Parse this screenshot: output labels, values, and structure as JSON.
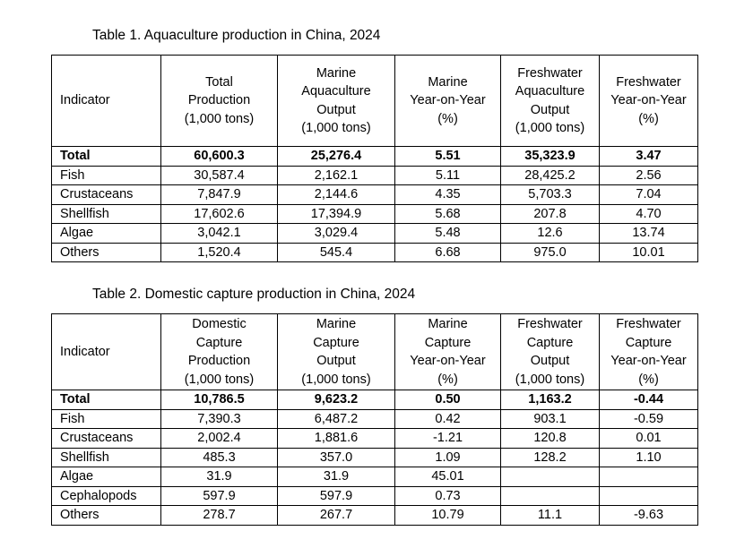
{
  "table1": {
    "caption": "Table 1. Aquaculture production in China, 2024",
    "headers": [
      [
        "Indicator"
      ],
      [
        "Total",
        "Production",
        "(1,000 tons)"
      ],
      [
        "Marine",
        "Aquaculture",
        "Output",
        "(1,000 tons)"
      ],
      [
        "Marine",
        "Year-on-Year",
        "(%)"
      ],
      [
        "Freshwater",
        "Aquaculture",
        "Output",
        "(1,000 tons)"
      ],
      [
        "Freshwater",
        "Year-on-Year",
        "(%)"
      ]
    ],
    "rows": [
      [
        "Total",
        "60,600.3",
        "25,276.4",
        "5.51",
        "35,323.9",
        "3.47"
      ],
      [
        "Fish",
        "30,587.4",
        "2,162.1",
        "5.11",
        "28,425.2",
        "2.56"
      ],
      [
        "Crustaceans",
        "7,847.9",
        "2,144.6",
        "4.35",
        "5,703.3",
        "7.04"
      ],
      [
        "Shellfish",
        "17,602.6",
        "17,394.9",
        "5.68",
        "207.8",
        "4.70"
      ],
      [
        "Algae",
        "3,042.1",
        "3,029.4",
        "5.48",
        "12.6",
        "13.74"
      ],
      [
        "Others",
        "1,520.4",
        "545.4",
        "6.68",
        "975.0",
        "10.01"
      ]
    ]
  },
  "table2": {
    "caption": "Table 2. Domestic capture production in China, 2024",
    "headers": [
      [
        "Indicator"
      ],
      [
        "Domestic",
        "Capture",
        "Production",
        "(1,000 tons)"
      ],
      [
        "Marine",
        "Capture",
        "Output",
        "(1,000 tons)"
      ],
      [
        "Marine",
        "Capture",
        "Year-on-Year",
        "(%)"
      ],
      [
        "Freshwater",
        "Capture",
        "Output",
        "(1,000 tons)"
      ],
      [
        "Freshwater",
        "Capture",
        "Year-on-Year",
        "(%)"
      ]
    ],
    "rows": [
      [
        "Total",
        "10,786.5",
        "9,623.2",
        "0.50",
        "1,163.2",
        "-0.44"
      ],
      [
        "Fish",
        "7,390.3",
        "6,487.2",
        "0.42",
        "903.1",
        "-0.59"
      ],
      [
        "Crustaceans",
        "2,002.4",
        "1,881.6",
        "-1.21",
        "120.8",
        "0.01"
      ],
      [
        "Shellfish",
        "485.3",
        "357.0",
        "1.09",
        "128.2",
        "1.10"
      ],
      [
        "Algae",
        "31.9",
        "31.9",
        "45.01",
        "",
        ""
      ],
      [
        "Cephalopods",
        "597.9",
        "597.9",
        "0.73",
        "",
        ""
      ],
      [
        "Others",
        "278.7",
        "267.7",
        "10.79",
        "11.1",
        "-9.63"
      ]
    ]
  }
}
